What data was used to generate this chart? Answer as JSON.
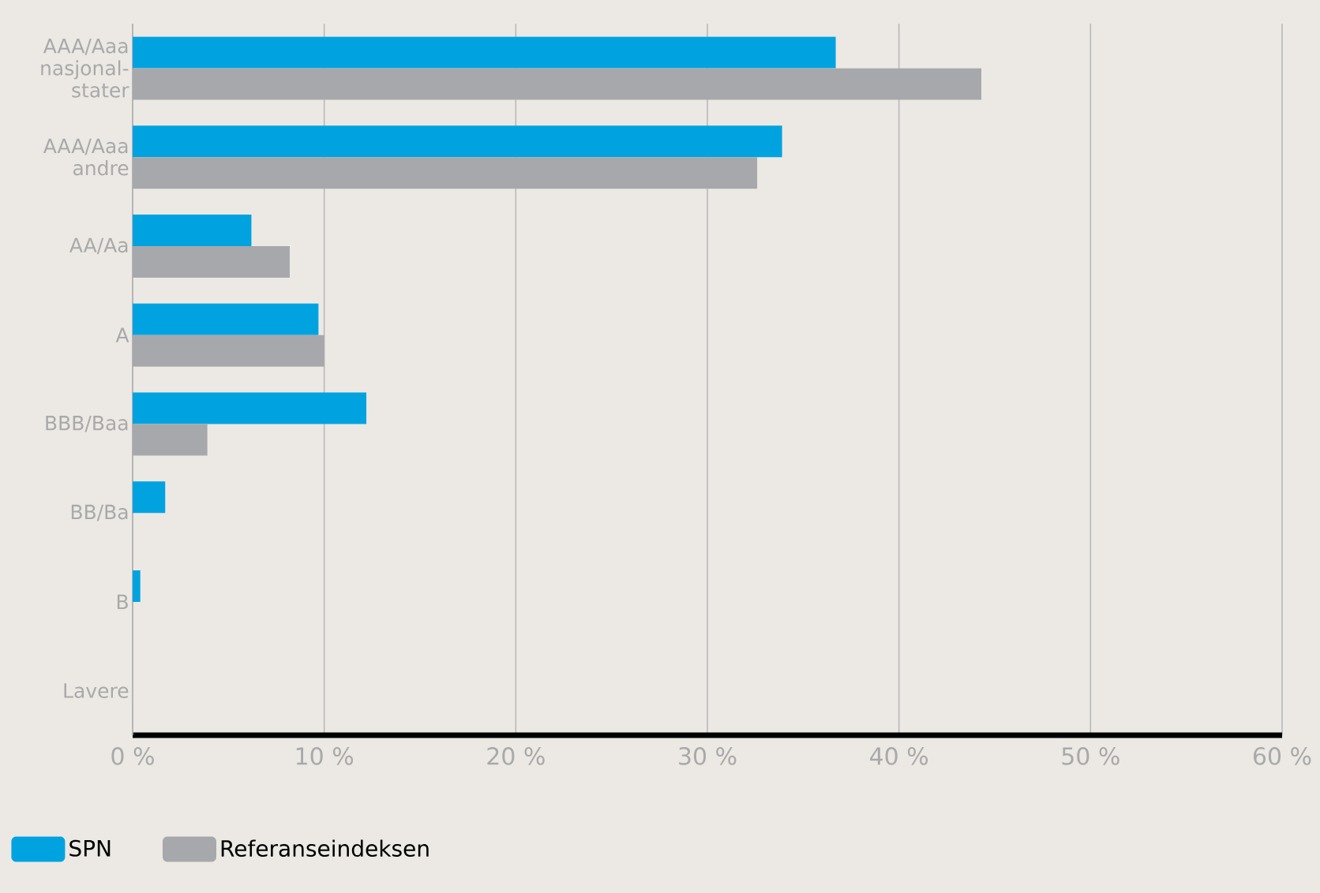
{
  "chart_data": {
    "type": "bar",
    "orientation": "horizontal",
    "categories": [
      "AAA/Aaa nasjonal-stater",
      "AAA/Aaa andre",
      "AA/Aa",
      "A",
      "BBB/Baa",
      "BB/Ba",
      "B",
      "Lavere"
    ],
    "series": [
      {
        "name": "SPN",
        "color": "#00a3e0",
        "values": [
          36.7,
          33.9,
          6.2,
          9.7,
          12.2,
          1.7,
          0.4,
          null
        ]
      },
      {
        "name": "Referanseindeksen",
        "color": "#a7a8ab",
        "values": [
          44.3,
          32.6,
          8.2,
          10.0,
          3.9,
          null,
          null,
          null
        ]
      }
    ],
    "xlim": [
      0,
      60
    ],
    "xticks": [
      {
        "value": 0,
        "label": "0 %"
      },
      {
        "value": 10,
        "label": "10 %"
      },
      {
        "value": 20,
        "label": "20 %"
      },
      {
        "value": 30,
        "label": "30 %"
      },
      {
        "value": 40,
        "label": "40 %"
      },
      {
        "value": 50,
        "label": "50 %"
      },
      {
        "value": 60,
        "label": "60 %"
      }
    ],
    "grid": "x",
    "legend": "bottom"
  }
}
